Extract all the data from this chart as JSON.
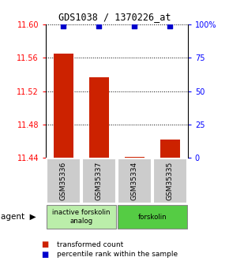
{
  "title": "GDS1038 / 1370226_at",
  "samples": [
    "GSM35336",
    "GSM35337",
    "GSM35334",
    "GSM35335"
  ],
  "bar_values": [
    11.565,
    11.537,
    11.441,
    11.462
  ],
  "percentile_values": [
    99,
    99,
    99,
    99
  ],
  "ylim_left": [
    11.44,
    11.6
  ],
  "ylim_right": [
    0,
    100
  ],
  "yticks_left": [
    11.44,
    11.48,
    11.52,
    11.56,
    11.6
  ],
  "yticks_right": [
    0,
    25,
    50,
    75,
    100
  ],
  "bar_color": "#cc2200",
  "dot_color": "#0000cc",
  "bar_width": 0.55,
  "groups": [
    {
      "label": "inactive forskolin\nanalog",
      "samples": [
        0,
        1
      ],
      "color": "#bbeeaa"
    },
    {
      "label": "forskolin",
      "samples": [
        2,
        3
      ],
      "color": "#55cc44"
    }
  ],
  "legend_items": [
    {
      "label": "transformed count",
      "color": "#cc2200"
    },
    {
      "label": "percentile rank within the sample",
      "color": "#0000cc"
    }
  ],
  "sample_box_color": "#cccccc",
  "title_fontsize": 8.5,
  "tick_fontsize": 7,
  "bar_label_fontsize": 6.5
}
